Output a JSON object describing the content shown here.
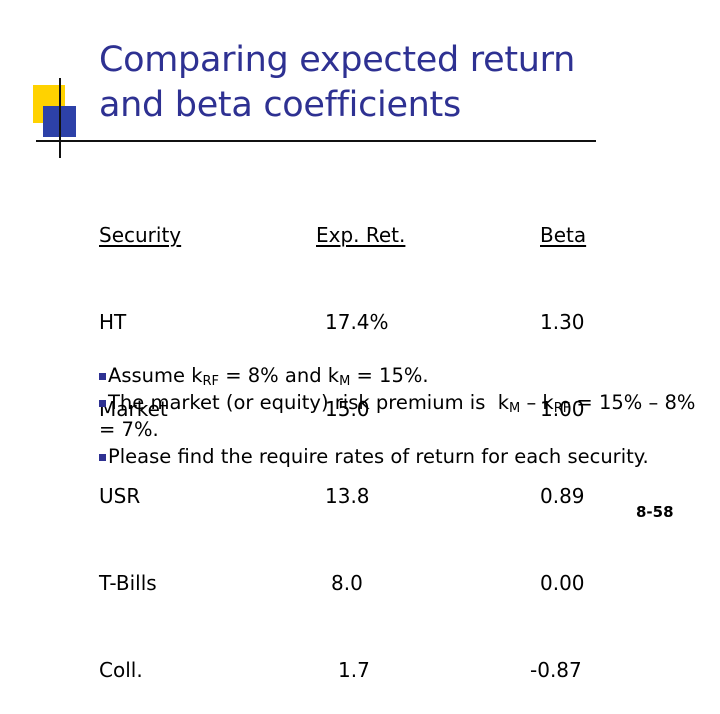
{
  "title": {
    "line1": "Comparing expected return",
    "line2": "and beta coefficients"
  },
  "table": {
    "headers": {
      "security": "Security",
      "exp_ret": "Exp. Ret.",
      "beta": "Beta"
    },
    "rows": [
      {
        "security": "HT",
        "exp_ret": "17.4%",
        "beta": "1.30"
      },
      {
        "security": "Market",
        "exp_ret": "15.0",
        "beta": "1.00"
      },
      {
        "security": "USR",
        "exp_ret": "13.8",
        "beta": "0.89"
      },
      {
        "security": "T-Bills",
        "exp_ret": "8.0",
        "beta": "0.00"
      },
      {
        "security": "Coll.",
        "exp_ret": "1.7",
        "beta": "-0.87"
      }
    ]
  },
  "bullets": {
    "b1": {
      "pre": "Assume k",
      "sub1": "RF",
      "mid": " = 8% and k",
      "sub2": "M",
      "post": " = 15%."
    },
    "b2": {
      "pre": "The market (or equity) risk premium is  k",
      "sub1": "M",
      "mid": " – k",
      "sub2": "RF",
      "post": " = 15% – 8% = 7%."
    },
    "b3": {
      "text": "Please find the require rates of return for each security."
    }
  },
  "page_number": "8-58",
  "colors": {
    "title": "#2e3192",
    "bullet": "#2e3192",
    "accent_yellow": "#ffd200",
    "accent_blue": "#2d41a8"
  }
}
